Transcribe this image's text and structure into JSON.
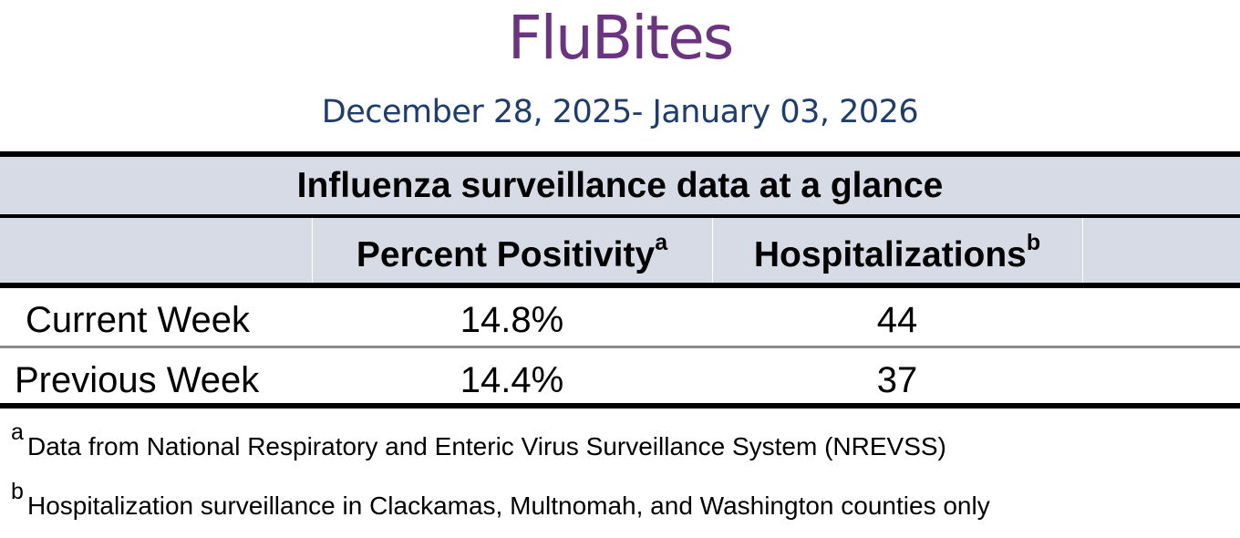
{
  "header": {
    "title": "FluBites",
    "date_range": "December 28, 2025- January 03, 2026"
  },
  "table": {
    "caption": "Influenza surveillance data at a glance",
    "columns": [
      {
        "label": "Percent Positivity",
        "note": "a"
      },
      {
        "label": "Hospitalizations",
        "note": "b"
      }
    ],
    "rows": [
      {
        "label": "Current Week",
        "percent_positivity": "14.8%",
        "hospitalizations": "44"
      },
      {
        "label": "Previous Week",
        "percent_positivity": "14.4%",
        "hospitalizations": "37"
      }
    ]
  },
  "footnotes": [
    {
      "marker": "a",
      "text": "Data from National Respiratory and Enteric Virus Surveillance System (NREVSS)"
    },
    {
      "marker": "b",
      "text": "Hospitalization surveillance in Clackamas, Multnomah, and Washington counties only"
    }
  ],
  "colors": {
    "title": "#6b3480",
    "date_range": "#1f3d6b",
    "table_band": "#d6dbe6"
  }
}
